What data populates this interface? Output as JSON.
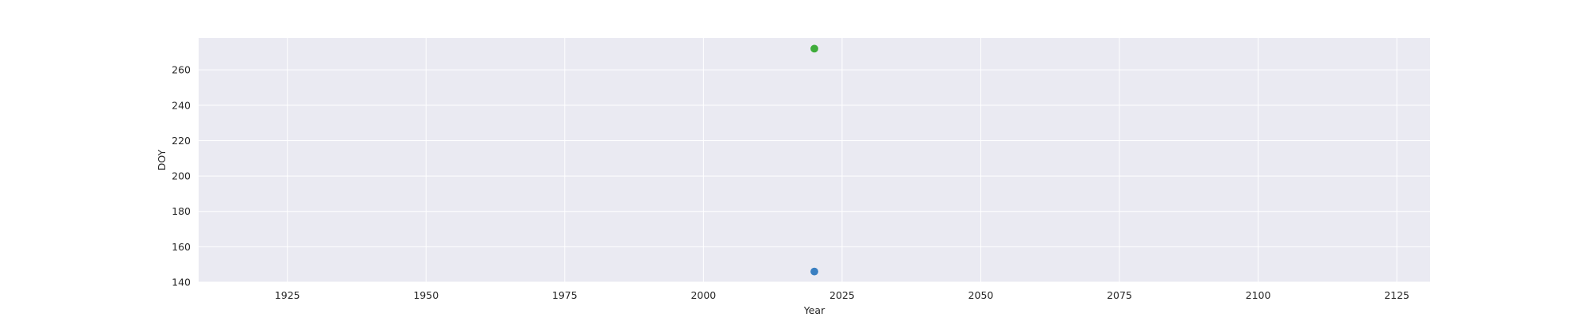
{
  "chart_data": {
    "type": "scatter",
    "title": "",
    "xlabel": "Year",
    "ylabel": "DOY",
    "xlim": [
      1909,
      2131
    ],
    "ylim": [
      140,
      278
    ],
    "xticks": [
      1925,
      1950,
      1975,
      2000,
      2025,
      2050,
      2075,
      2100,
      2125
    ],
    "yticks": [
      140,
      160,
      180,
      200,
      220,
      240,
      260
    ],
    "grid": true,
    "legend": "none",
    "colors": {
      "background": "#eaeaf2",
      "grid": "#ffffff",
      "text": "#262626"
    },
    "series": [
      {
        "color": "#3a7fc1",
        "points": [
          {
            "x": 2020,
            "y": 146
          }
        ]
      },
      {
        "color": "#3fac3b",
        "points": [
          {
            "x": 2020,
            "y": 272
          }
        ]
      }
    ]
  }
}
